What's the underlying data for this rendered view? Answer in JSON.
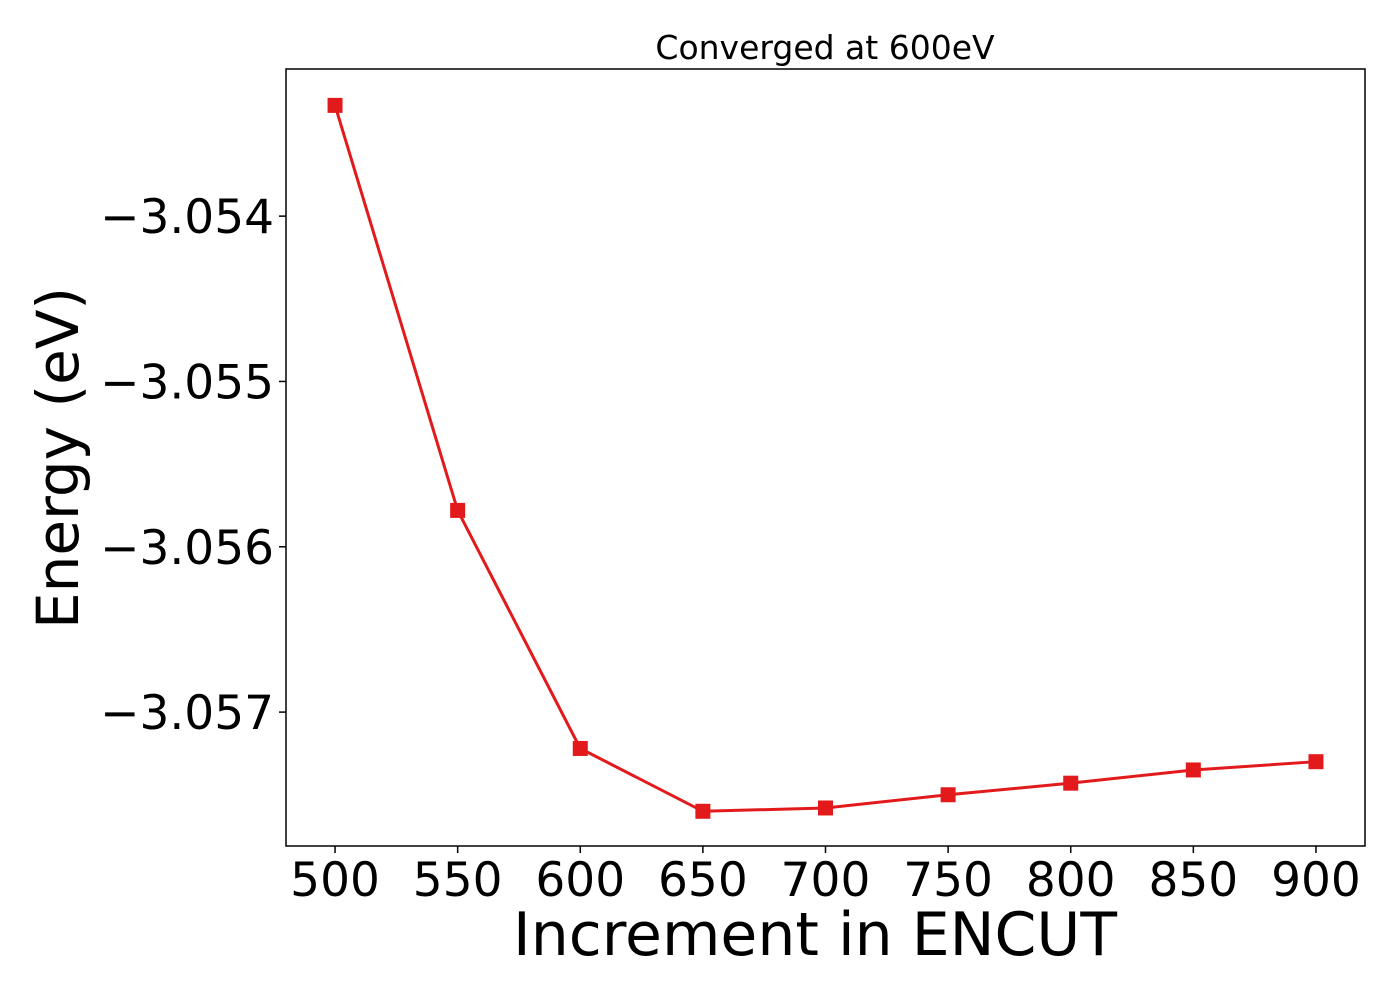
{
  "chart_data": {
    "type": "line",
    "title": "Converged at 600eV",
    "xlabel": "Increment in ENCUT",
    "ylabel": "Energy (eV)",
    "x": [
      500,
      550,
      600,
      650,
      700,
      750,
      800,
      850,
      900
    ],
    "series": [
      {
        "values": [
          -3.05333,
          -3.05578,
          -3.05722,
          -3.0576,
          -3.05758,
          -3.0575,
          -3.05743,
          -3.05735,
          -3.0573
        ],
        "color": "#e31a1c",
        "marker": "square"
      }
    ],
    "xticks": [
      500,
      550,
      600,
      650,
      700,
      750,
      800,
      850,
      900
    ],
    "xtick_labels": [
      "500",
      "550",
      "600",
      "650",
      "700",
      "750",
      "800",
      "850",
      "900"
    ],
    "yticks": [
      -3.054,
      -3.055,
      -3.056,
      -3.057
    ],
    "ytick_labels": [
      "−3.054",
      "−3.055",
      "−3.056",
      "−3.057"
    ],
    "xlim": [
      480,
      920
    ],
    "ylim": [
      -3.05781,
      -3.05311
    ],
    "grid": false,
    "legend": "none"
  }
}
